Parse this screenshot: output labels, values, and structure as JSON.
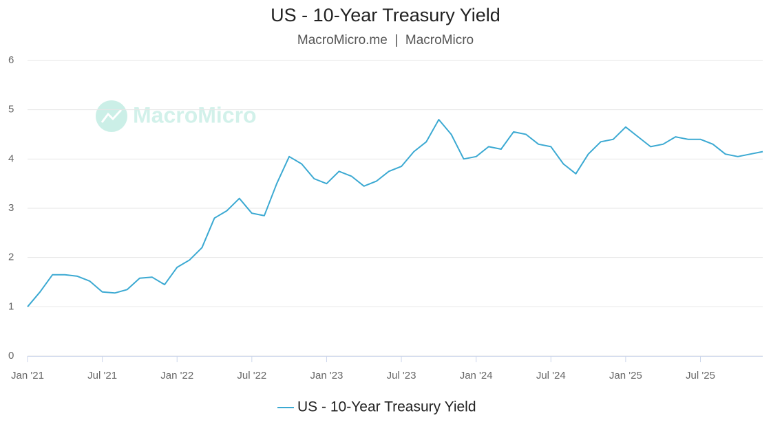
{
  "chart_data": {
    "type": "line",
    "title": "US - 10-Year Treasury Yield",
    "subtitle": "MacroMicro.me  |  MacroMicro",
    "watermark": "MacroMicro",
    "x": [
      "2021-01",
      "2021-02",
      "2021-03",
      "2021-04",
      "2021-05",
      "2021-06",
      "2021-07",
      "2021-08",
      "2021-09",
      "2021-10",
      "2021-11",
      "2021-12",
      "2022-01",
      "2022-02",
      "2022-03",
      "2022-04",
      "2022-05",
      "2022-06",
      "2022-07",
      "2022-08",
      "2022-09",
      "2022-10",
      "2022-11",
      "2022-12",
      "2023-01",
      "2023-02",
      "2023-03",
      "2023-04",
      "2023-05",
      "2023-06",
      "2023-07",
      "2023-08",
      "2023-09",
      "2023-10",
      "2023-11",
      "2023-12",
      "2024-01",
      "2024-02",
      "2024-03",
      "2024-04",
      "2024-05",
      "2024-06",
      "2024-07",
      "2024-08",
      "2024-09",
      "2024-10",
      "2024-11",
      "2024-12",
      "2025-01",
      "2025-02",
      "2025-03",
      "2025-04",
      "2025-05",
      "2025-06",
      "2025-07",
      "2025-08",
      "2025-09",
      "2025-10",
      "2025-11",
      "2025-12"
    ],
    "series": [
      {
        "name": "US - 10-Year Treasury Yield",
        "color": "#3ba9d2",
        "values": [
          1.0,
          1.3,
          1.65,
          1.65,
          1.62,
          1.52,
          1.3,
          1.28,
          1.35,
          1.58,
          1.6,
          1.45,
          1.8,
          1.95,
          2.2,
          2.8,
          2.95,
          3.2,
          2.9,
          2.85,
          3.5,
          4.05,
          3.9,
          3.6,
          3.5,
          3.75,
          3.65,
          3.45,
          3.55,
          3.75,
          3.85,
          4.15,
          4.35,
          4.8,
          4.5,
          4.0,
          4.05,
          4.25,
          4.2,
          4.55,
          4.5,
          4.3,
          4.25,
          3.9,
          3.7,
          4.1,
          4.35,
          4.4,
          4.65,
          4.45,
          4.25,
          4.3,
          4.45,
          4.4,
          4.4,
          4.3,
          4.1,
          4.05,
          4.1,
          4.15
        ]
      }
    ],
    "xlim": [
      "2021-01",
      "2025-12"
    ],
    "xticks": [
      {
        "value": "2021-01",
        "label": "Jan '21"
      },
      {
        "value": "2021-07",
        "label": "Jul '21"
      },
      {
        "value": "2022-01",
        "label": "Jan '22"
      },
      {
        "value": "2022-07",
        "label": "Jul '22"
      },
      {
        "value": "2023-01",
        "label": "Jan '23"
      },
      {
        "value": "2023-07",
        "label": "Jul '23"
      },
      {
        "value": "2024-01",
        "label": "Jan '24"
      },
      {
        "value": "2024-07",
        "label": "Jul '24"
      },
      {
        "value": "2025-01",
        "label": "Jan '25"
      },
      {
        "value": "2025-07",
        "label": "Jul '25"
      }
    ],
    "ylim": [
      0,
      6
    ],
    "yticks": [
      0,
      1,
      2,
      3,
      4,
      5,
      6
    ],
    "grid": true
  }
}
